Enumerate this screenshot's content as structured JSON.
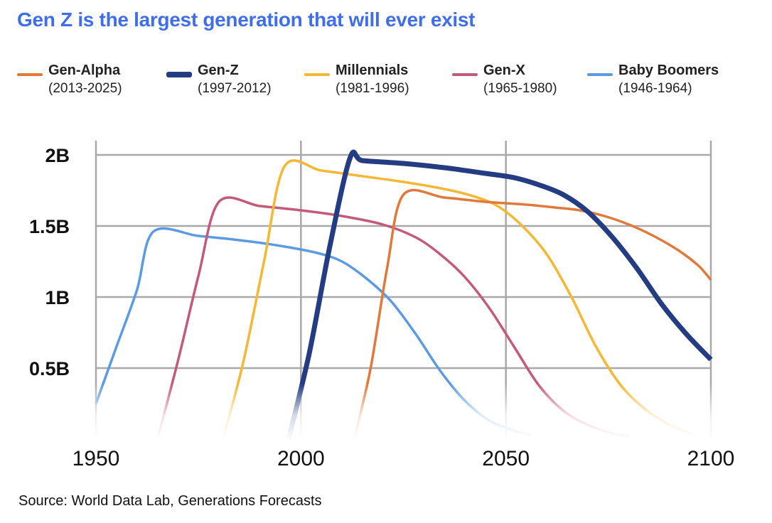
{
  "chart_data": {
    "type": "line",
    "title": "Gen Z is the largest generation that will ever exist",
    "source": "Source: World Data Lab, Generations Forecasts",
    "xlabel": "",
    "ylabel": "",
    "xlim": [
      1950,
      2100
    ],
    "ylim": [
      0,
      2.1
    ],
    "x_ticks": [
      1950,
      2000,
      2050,
      2100
    ],
    "x_tick_labels": [
      "1950",
      "2000",
      "2050",
      "2100"
    ],
    "y_ticks": [
      0.5,
      1,
      1.5,
      2
    ],
    "y_tick_labels": [
      "0.5B",
      "1B",
      "1.5B",
      "2B"
    ],
    "grid": true,
    "legend_position": "top",
    "series": [
      {
        "name": "Gen-Alpha",
        "range": "(2013-2025)",
        "color": "#e07a3c",
        "width": 3.5,
        "x": [
          2013,
          2017,
          2021,
          2025,
          2035,
          2045,
          2055,
          2062,
          2068,
          2074,
          2080,
          2086,
          2092,
          2097,
          2100
        ],
        "y": [
          0.0,
          0.5,
          1.2,
          1.72,
          1.7,
          1.67,
          1.65,
          1.63,
          1.61,
          1.57,
          1.51,
          1.43,
          1.33,
          1.22,
          1.12
        ]
      },
      {
        "name": "Gen-Z",
        "range": "(1997-2012)",
        "color": "#233c82",
        "width": 7,
        "x": [
          1997,
          2002,
          2007,
          2012,
          2015,
          2025,
          2035,
          2045,
          2052,
          2058,
          2064,
          2070,
          2076,
          2082,
          2088,
          2094,
          2100
        ],
        "y": [
          0.0,
          0.6,
          1.35,
          1.98,
          1.96,
          1.94,
          1.91,
          1.87,
          1.84,
          1.79,
          1.72,
          1.6,
          1.42,
          1.2,
          0.95,
          0.74,
          0.56
        ]
      },
      {
        "name": "Millennials",
        "range": "(1981-1996)",
        "color": "#f4b836",
        "width": 3.5,
        "x": [
          1981,
          1986,
          1991,
          1996,
          2005,
          2015,
          2025,
          2035,
          2042,
          2048,
          2054,
          2060,
          2066,
          2072,
          2078,
          2084,
          2090,
          2096
        ],
        "y": [
          0.0,
          0.55,
          1.25,
          1.92,
          1.89,
          1.85,
          1.81,
          1.76,
          1.71,
          1.64,
          1.5,
          1.3,
          1.0,
          0.65,
          0.38,
          0.21,
          0.1,
          0.03
        ]
      },
      {
        "name": "Gen-X",
        "range": "(1965-1980)",
        "color": "#c45a7a",
        "width": 3.5,
        "x": [
          1965,
          1970,
          1975,
          1980,
          1990,
          2000,
          2010,
          2020,
          2028,
          2034,
          2040,
          2046,
          2052,
          2058,
          2064,
          2070,
          2076,
          2080
        ],
        "y": [
          0.0,
          0.55,
          1.15,
          1.67,
          1.64,
          1.61,
          1.57,
          1.51,
          1.42,
          1.3,
          1.14,
          0.92,
          0.65,
          0.38,
          0.2,
          0.1,
          0.04,
          0.02
        ]
      },
      {
        "name": "Baby Boomers",
        "range": "(1946-1964)",
        "color": "#5b9be2",
        "width": 3.5,
        "x": [
          1950,
          1955,
          1960,
          1964,
          1975,
          1985,
          1995,
          2004,
          2010,
          2016,
          2022,
          2028,
          2034,
          2040,
          2046,
          2052,
          2056
        ],
        "y": [
          0.25,
          0.65,
          1.05,
          1.46,
          1.43,
          1.4,
          1.36,
          1.31,
          1.25,
          1.13,
          0.97,
          0.74,
          0.48,
          0.27,
          0.13,
          0.06,
          0.03
        ]
      }
    ]
  }
}
